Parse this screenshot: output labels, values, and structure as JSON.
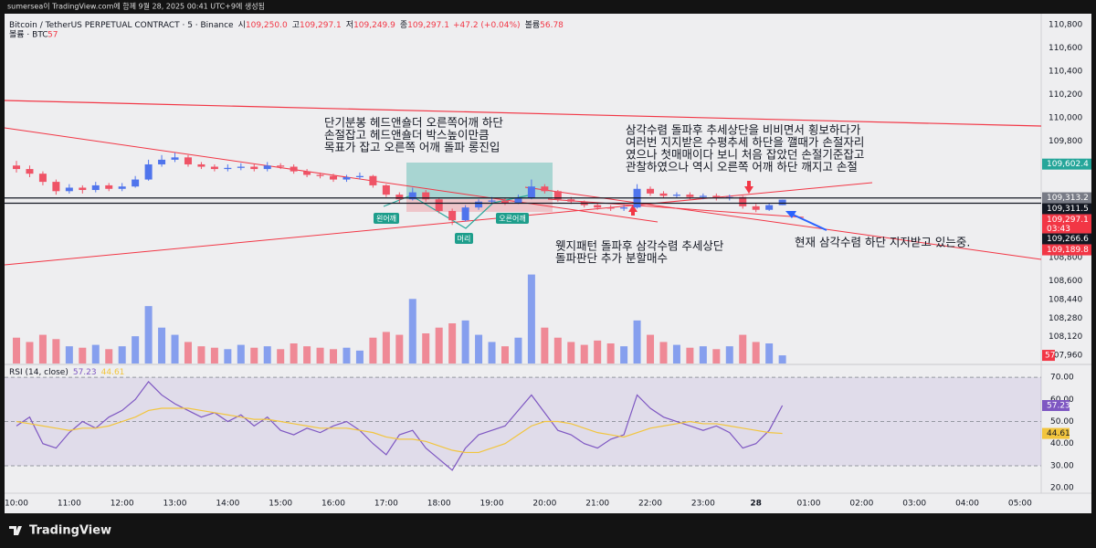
{
  "header": {
    "text": "sumersea이 TradingView.com에 함께 9월 28, 2025 00:41 UTC+9에 생성됨"
  },
  "footer": {
    "brand": "TradingView"
  },
  "chart_data": [
    {
      "type": "candlestick",
      "title": "Bitcoin / TetherUS PERPETUAL CONTRACT · 5 · Binance",
      "legend": [
        {
          "label": "시",
          "value": "109,250.0"
        },
        {
          "label": "고",
          "value": "109,297.1"
        },
        {
          "label": "저",
          "value": "109,249.9"
        },
        {
          "label": "종",
          "value": "109,297.1"
        },
        {
          "label": "",
          "value": "+47.2 (+0.04%)"
        },
        {
          "label": "볼륨",
          "value": "56.78"
        }
      ],
      "up_color": "#4f74ec",
      "down_color": "#ef5366",
      "open": [
        109590,
        109560,
        109520,
        109450,
        109370,
        109400,
        109380,
        109420,
        109390,
        109410,
        109470,
        109600,
        109640,
        109660,
        109600,
        109580,
        109560,
        109570,
        109580,
        109560,
        109590,
        109580,
        109540,
        109510,
        109500,
        109470,
        109490,
        109500,
        109420,
        109340,
        109300,
        109360,
        109300,
        109200,
        109120,
        109230,
        109280,
        109290,
        109270,
        109310,
        109410,
        109370,
        109300,
        109280,
        109250,
        109230,
        109220,
        109230,
        109390,
        109350,
        109330,
        109340,
        109320,
        109330,
        109310,
        109320,
        109240,
        109210,
        109250
      ],
      "high": [
        109630,
        109590,
        109540,
        109470,
        109430,
        109420,
        109450,
        109440,
        109440,
        109500,
        109640,
        109680,
        109700,
        109680,
        109620,
        109600,
        109600,
        109610,
        109600,
        109620,
        109610,
        109600,
        109560,
        109530,
        109520,
        109510,
        109530,
        109510,
        109430,
        109360,
        109400,
        109380,
        109310,
        109220,
        109250,
        109300,
        109320,
        109310,
        109340,
        109470,
        109430,
        109380,
        109320,
        109290,
        109270,
        109250,
        109250,
        109430,
        109410,
        109370,
        109360,
        109360,
        109350,
        109350,
        109340,
        109330,
        109260,
        109270,
        109297.1
      ],
      "low": [
        109530,
        109490,
        109420,
        109340,
        109350,
        109350,
        109360,
        109370,
        109370,
        109400,
        109460,
        109580,
        109620,
        109580,
        109560,
        109540,
        109540,
        109550,
        109540,
        109540,
        109560,
        109520,
        109490,
        109480,
        109450,
        109450,
        109470,
        109400,
        109320,
        109270,
        109290,
        109280,
        109180,
        109080,
        109110,
        109210,
        109260,
        109250,
        109260,
        109300,
        109350,
        109280,
        109260,
        109230,
        109210,
        109200,
        109200,
        109220,
        109330,
        109310,
        109310,
        109300,
        109300,
        109290,
        109290,
        109220,
        109190,
        109200,
        109249.9
      ],
      "close": [
        109560,
        109520,
        109450,
        109370,
        109400,
        109380,
        109420,
        109390,
        109410,
        109470,
        109600,
        109640,
        109660,
        109600,
        109580,
        109560,
        109570,
        109580,
        109560,
        109590,
        109580,
        109540,
        109510,
        109500,
        109470,
        109490,
        109500,
        109420,
        109340,
        109300,
        109360,
        109300,
        109200,
        109120,
        109230,
        109280,
        109290,
        109270,
        109310,
        109410,
        109370,
        109300,
        109280,
        109250,
        109230,
        109220,
        109230,
        109390,
        109350,
        109330,
        109340,
        109320,
        109330,
        109310,
        109320,
        109240,
        109210,
        109250,
        109297.1
      ],
      "ylim": [
        107890,
        110894
      ],
      "yticks": [
        {
          "value": 110800,
          "label": "110,800"
        },
        {
          "value": 110600,
          "label": "110,600"
        },
        {
          "value": 110400,
          "label": "110,400"
        },
        {
          "value": 110200,
          "label": "110,200"
        },
        {
          "value": 110000,
          "label": "110,000"
        },
        {
          "value": 109800,
          "label": "109,800"
        },
        {
          "value": 108800,
          "label": "108,800"
        },
        {
          "value": 108600,
          "label": "108,600"
        },
        {
          "value": 108440,
          "label": "108,440"
        },
        {
          "value": 108280,
          "label": "108,280"
        },
        {
          "value": 108120,
          "label": "108,120"
        },
        {
          "value": 107960,
          "label": "107,960"
        }
      ],
      "xlim": [
        -0.9,
        77.6
      ],
      "xticks": [
        {
          "value": 0,
          "label": "10:00"
        },
        {
          "value": 4,
          "label": "11:00"
        },
        {
          "value": 8,
          "label": "12:00"
        },
        {
          "value": 12,
          "label": "13:00"
        },
        {
          "value": 16,
          "label": "14:00"
        },
        {
          "value": 20,
          "label": "15:00"
        },
        {
          "value": 24,
          "label": "16:00"
        },
        {
          "value": 28,
          "label": "17:00"
        },
        {
          "value": 32,
          "label": "18:00"
        },
        {
          "value": 36,
          "label": "19:00"
        },
        {
          "value": 40,
          "label": "20:00"
        },
        {
          "value": 44,
          "label": "21:00"
        },
        {
          "value": 48,
          "label": "22:00"
        },
        {
          "value": 52,
          "label": "23:00"
        },
        {
          "value": 56,
          "label": "28"
        },
        {
          "value": 60,
          "label": "01:00"
        },
        {
          "value": 64,
          "label": "02:00"
        },
        {
          "value": 68,
          "label": "03:00"
        },
        {
          "value": 72,
          "label": "04:00"
        },
        {
          "value": 76,
          "label": "05:00"
        }
      ],
      "price_tags": [
        {
          "value": 109602.4,
          "label": "109,602.4",
          "color": "#26a69a",
          "line": false
        },
        {
          "value": 109313.2,
          "label": "109,313.2",
          "color": "#787b86",
          "line": false
        },
        {
          "value": 109311.5,
          "label": "109,311.5",
          "color": "#131722",
          "line": true
        },
        {
          "value": 109297.1,
          "label": "109,297.1",
          "color": "#f23645",
          "line": false
        },
        {
          "value": 109266.6,
          "label": "109,266.6",
          "color": "#131722",
          "line": true
        },
        {
          "value": 109189.8,
          "label": "109,189.8",
          "color": "#f23645",
          "line": false
        }
      ],
      "countdown": "03:43",
      "annotations": [
        {
          "lines": [
            "단기분봉 헤드앤숄더 오른쪽어깨 하단",
            "손절잡고 헤드앤숄더 박스높이만큼",
            "목표가 잡고 오른쪽 어깨 돌파 롱진입"
          ]
        },
        {
          "lines": [
            "삼각수렴 돌파후 추세상단을 비비면서 횡보하다가",
            "여러번 지지받은 수평추세 하단을 깰때가 손절자리",
            "였으나 첫매매이다 보니 처음 잡았던 손절기준잡고",
            "관찰하였으나 역시 오른쪽 어깨 하단 깨지고 손절"
          ]
        },
        {
          "lines": [
            "웻지패턴 돌파후 삼각수렴 추세상단",
            "돌파판단 추가 분할매수"
          ]
        },
        {
          "lines": [
            "현재 삼각수렴 하단 지지받고 있는중."
          ]
        }
      ],
      "pattern_labels": [
        "왼어깨",
        "머리",
        "오른어깨"
      ]
    },
    {
      "type": "bar",
      "title": "볼륨 · BTC",
      "last_label": "57",
      "values": [
        180,
        150,
        200,
        170,
        120,
        110,
        130,
        100,
        120,
        190,
        400,
        250,
        200,
        150,
        120,
        110,
        100,
        130,
        110,
        120,
        100,
        140,
        120,
        110,
        100,
        110,
        90,
        180,
        220,
        200,
        450,
        210,
        250,
        280,
        300,
        200,
        150,
        120,
        180,
        620,
        250,
        180,
        150,
        130,
        160,
        140,
        120,
        300,
        200,
        150,
        130,
        110,
        120,
        100,
        120,
        200,
        150,
        140,
        56.78
      ],
      "ylim": [
        0,
        700
      ]
    },
    {
      "type": "line",
      "title": "RSI (14, close)",
      "series": [
        {
          "color": "#7e57c2",
          "last_label": "57.23",
          "values": [
            48,
            52,
            40,
            38,
            45,
            50,
            47,
            52,
            55,
            60,
            68,
            62,
            58,
            55,
            52,
            54,
            50,
            53,
            48,
            52,
            46,
            44,
            47,
            45,
            48,
            50,
            46,
            40,
            35,
            44,
            46,
            38,
            33,
            28,
            38,
            44,
            46,
            48,
            55,
            62,
            54,
            46,
            44,
            40,
            38,
            42,
            44,
            62,
            56,
            52,
            50,
            48,
            46,
            48,
            45,
            38,
            40,
            46,
            57.23
          ]
        },
        {
          "color": "#f2c53d",
          "last_label": "44.61",
          "values": [
            50,
            49,
            48,
            47,
            46,
            47,
            47,
            48,
            50,
            52,
            55,
            56,
            56,
            56,
            55,
            54,
            53,
            52,
            51,
            51,
            50,
            49,
            48,
            47,
            47,
            47,
            46,
            45,
            43,
            42,
            42,
            41,
            39,
            37,
            36,
            36,
            38,
            40,
            44,
            48,
            50,
            50,
            49,
            47,
            45,
            44,
            43,
            45,
            47,
            48,
            49,
            50,
            49,
            49,
            48,
            47,
            46,
            45,
            44.61
          ]
        }
      ],
      "ylim": [
        17.6,
        75.4
      ],
      "yticks": [
        {
          "value": 70,
          "label": "70.00"
        },
        {
          "value": 60,
          "label": "60.00"
        },
        {
          "value": 50,
          "label": "50.00"
        },
        {
          "value": 40,
          "label": "40.00"
        },
        {
          "value": 30,
          "label": "30.00"
        },
        {
          "value": 20,
          "label": "20.00"
        }
      ],
      "levels": [
        70,
        50,
        30
      ]
    }
  ]
}
